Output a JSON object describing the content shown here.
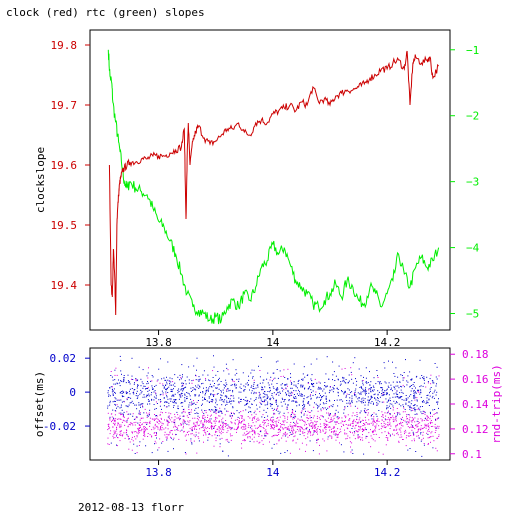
{
  "title": "clock (red) rtc (green) slopes",
  "footer": "2012-08-13 florr",
  "colors": {
    "clock": "#cc0000",
    "rtc": "#00ee00",
    "offset": "#0000cc",
    "rndtrip": "#dd00dd",
    "frame": "#000000"
  },
  "chart_data": [
    {
      "type": "line",
      "x_range": [
        13.68,
        14.31
      ],
      "x_ticks": [
        13.8,
        14,
        14.2
      ],
      "x_tick_labels": [
        "13.8",
        "14",
        "14.2"
      ],
      "ylabel_left": "clockslope",
      "ylim_left": [
        19.325,
        19.825
      ],
      "yticks_left": [
        19.4,
        19.5,
        19.6,
        19.7,
        19.8
      ],
      "ytick_labels_left": [
        "19.4",
        "19.5",
        "19.6",
        "19.7",
        "19.8"
      ],
      "ylim_right": [
        -5.25,
        -0.7
      ],
      "yticks_right": [
        -5,
        -4,
        -3,
        -2,
        -1
      ],
      "ytick_labels_right": [
        "−5",
        "−4",
        "−3",
        "−2",
        "−1"
      ],
      "grid": false,
      "series": [
        {
          "axis": "left",
          "x": [
            13.714,
            13.717,
            13.719,
            13.721,
            13.723,
            13.725,
            13.727,
            13.728,
            13.73,
            13.732,
            13.734,
            13.737,
            13.74,
            13.745,
            13.75,
            13.76,
            13.77,
            13.78,
            13.79,
            13.8,
            13.81,
            13.82,
            13.83,
            13.84,
            13.845,
            13.848,
            13.85,
            13.852,
            13.855,
            13.86,
            13.865,
            13.87,
            13.88,
            13.89,
            13.9,
            13.91,
            13.92,
            13.93,
            13.94,
            13.95,
            13.96,
            13.97,
            13.98,
            13.99,
            14.0,
            14.01,
            14.02,
            14.03,
            14.04,
            14.05,
            14.06,
            14.07,
            14.08,
            14.09,
            14.1,
            14.11,
            14.12,
            14.13,
            14.14,
            14.15,
            14.16,
            14.17,
            14.18,
            14.19,
            14.2,
            14.21,
            14.22,
            14.23,
            14.235,
            14.24,
            14.245,
            14.25,
            14.26,
            14.27,
            14.275,
            14.28,
            14.29
          ],
          "y": [
            19.6,
            19.4,
            19.38,
            19.46,
            19.42,
            19.35,
            19.5,
            19.52,
            19.55,
            19.57,
            19.58,
            19.59,
            19.595,
            19.6,
            19.605,
            19.605,
            19.61,
            19.61,
            19.615,
            19.615,
            19.615,
            19.62,
            19.625,
            19.63,
            19.66,
            19.51,
            19.61,
            19.67,
            19.6,
            19.64,
            19.655,
            19.665,
            19.645,
            19.635,
            19.64,
            19.65,
            19.66,
            19.66,
            19.67,
            19.655,
            19.65,
            19.67,
            19.675,
            19.67,
            19.685,
            19.69,
            19.695,
            19.7,
            19.69,
            19.705,
            19.7,
            19.73,
            19.705,
            19.71,
            19.7,
            19.715,
            19.72,
            19.725,
            19.725,
            19.73,
            19.735,
            19.745,
            19.75,
            19.76,
            19.76,
            19.77,
            19.775,
            19.76,
            19.79,
            19.7,
            19.77,
            19.78,
            19.77,
            19.775,
            19.78,
            19.745,
            19.765
          ]
        },
        {
          "axis": "right",
          "x": [
            13.712,
            13.715,
            13.718,
            13.72,
            13.725,
            13.73,
            13.735,
            13.74,
            13.745,
            13.75,
            13.76,
            13.77,
            13.78,
            13.79,
            13.8,
            13.81,
            13.82,
            13.83,
            13.84,
            13.85,
            13.86,
            13.87,
            13.88,
            13.89,
            13.9,
            13.91,
            13.92,
            13.93,
            13.94,
            13.95,
            13.96,
            13.97,
            13.98,
            13.99,
            14.0,
            14.01,
            14.02,
            14.03,
            14.04,
            14.05,
            14.06,
            14.07,
            14.08,
            14.09,
            14.1,
            14.11,
            14.12,
            14.13,
            14.14,
            14.15,
            14.16,
            14.17,
            14.18,
            14.19,
            14.2,
            14.21,
            14.22,
            14.23,
            14.24,
            14.25,
            14.26,
            14.27,
            14.28,
            14.29
          ],
          "y": [
            -1.0,
            -1.4,
            -1.5,
            -1.8,
            -2.1,
            -2.4,
            -2.7,
            -3.0,
            -3.1,
            -3.0,
            -3.1,
            -3.15,
            -3.2,
            -3.4,
            -3.6,
            -3.7,
            -3.9,
            -4.1,
            -4.4,
            -4.7,
            -4.9,
            -4.95,
            -5.0,
            -5.1,
            -5.05,
            -5.1,
            -4.9,
            -4.8,
            -4.9,
            -4.7,
            -4.8,
            -4.6,
            -4.3,
            -4.2,
            -3.95,
            -4.1,
            -4.0,
            -4.25,
            -4.5,
            -4.6,
            -4.7,
            -4.85,
            -4.9,
            -4.8,
            -4.7,
            -4.55,
            -4.75,
            -4.5,
            -4.6,
            -4.8,
            -4.85,
            -4.6,
            -4.7,
            -4.9,
            -4.7,
            -4.5,
            -4.1,
            -4.4,
            -4.6,
            -4.3,
            -4.15,
            -4.3,
            -4.2,
            -4.0
          ]
        }
      ]
    },
    {
      "type": "scatter",
      "x_range": [
        13.68,
        14.31
      ],
      "x_ticks": [
        13.8,
        14,
        14.2
      ],
      "x_tick_labels": [
        "13.8",
        "14",
        "14.2"
      ],
      "ylabel_left": "offset(ms)",
      "ylim_left": [
        -0.04,
        0.026
      ],
      "yticks_left": [
        -0.02,
        0,
        0.02
      ],
      "ytick_labels_left": [
        "-0.02",
        "0",
        "0.02"
      ],
      "ylabel_right": "rnd-trip(ms)",
      "ylim_right": [
        0.095,
        0.185
      ],
      "yticks_right": [
        0.1,
        0.12,
        0.14,
        0.16,
        0.18
      ],
      "ytick_labels_right": [
        "0.1",
        "0.12",
        "0.14",
        "0.16",
        "0.18"
      ],
      "grid": false,
      "series": [
        {
          "axis": "left",
          "x_range": [
            13.71,
            14.29
          ],
          "center": -0.001,
          "spread": 0.006,
          "sparse_min": -0.038,
          "sparse_max": 0.022,
          "count": 1600
        },
        {
          "axis": "right",
          "x_range": [
            13.71,
            14.29
          ],
          "center": 0.123,
          "spread": 0.006,
          "sparse_min": 0.1,
          "sparse_max": 0.17,
          "count": 1600
        }
      ]
    }
  ]
}
